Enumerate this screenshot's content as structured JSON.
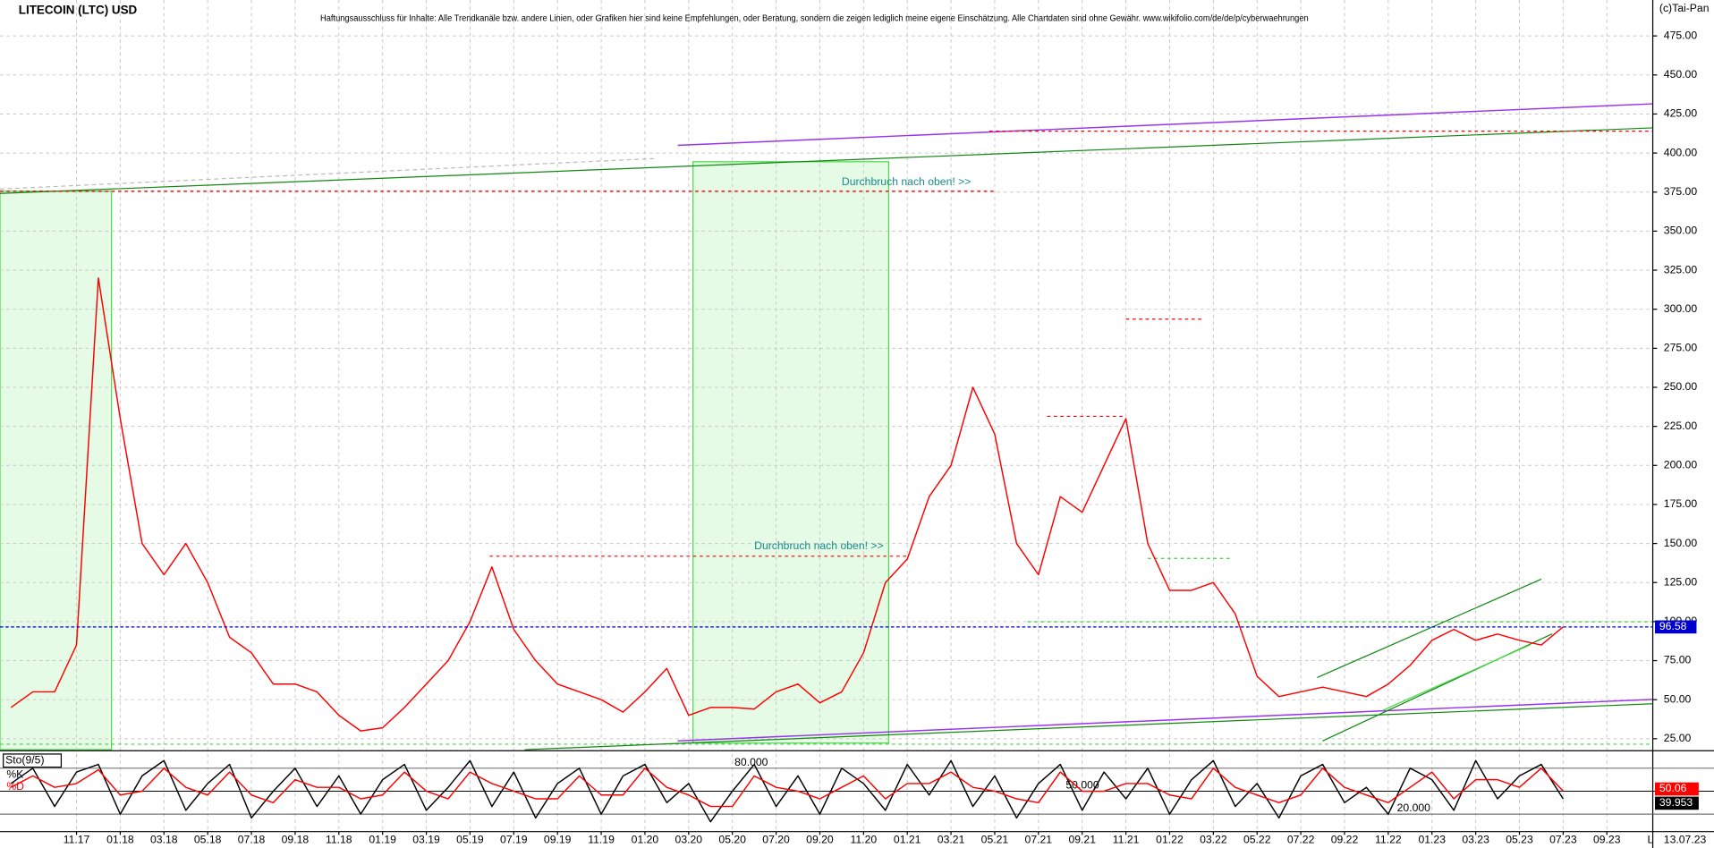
{
  "chart_data": [
    {
      "type": "line",
      "title": "LITECOIN (LTC) USD",
      "disclaimer": "Haftungsausschluss für Inhalte: Alle Trendkanäle bzw. andere Linien, oder Grafiken hier sind keine Empfehlungen, oder Beratung, sondern die zeigen lediglich meine eigene Einschätzung. Alle Chartdaten sind ohne Gewähr. www.wikifolio.com/de/de/p/cyberwaehrungen",
      "source": "(c)Tai-Pan",
      "date": "13.07.23",
      "axis_marker": "L",
      "annotations": [
        "Durchbruch nach oben! >>",
        "Durchbruch nach oben! >>"
      ],
      "categories": [
        null,
        null,
        null,
        "11.17",
        null,
        "01.18",
        null,
        "03.18",
        null,
        "05.18",
        null,
        "07.18",
        null,
        "09.18",
        null,
        "11.18",
        null,
        "01.19",
        null,
        "03.19",
        null,
        "05.19",
        null,
        "07.19",
        null,
        "09.19",
        null,
        "11.19",
        null,
        "01.20",
        null,
        "03.20",
        null,
        "05.20",
        null,
        "07.20",
        null,
        "09.20",
        null,
        "11.20",
        null,
        "01.21",
        null,
        "03.21",
        null,
        "05.21",
        null,
        "07.21",
        null,
        "09.21",
        null,
        "11.21",
        null,
        "01.22",
        null,
        "03.22",
        null,
        "05.22",
        null,
        "07.22",
        null,
        "09.22",
        null,
        "11.22",
        null,
        "01.23",
        null,
        "03.23",
        null,
        "05.23",
        null,
        "07.23",
        null,
        "09.23"
      ],
      "values": [
        45,
        55,
        55,
        85,
        320,
        230,
        150,
        130,
        150,
        125,
        90,
        80,
        60,
        60,
        55,
        40,
        30,
        32,
        45,
        60,
        75,
        100,
        135,
        95,
        75,
        60,
        55,
        50,
        42,
        55,
        70,
        40,
        45,
        45,
        44,
        55,
        60,
        48,
        55,
        80,
        125,
        140,
        180,
        200,
        250,
        220,
        150,
        130,
        180,
        170,
        200,
        230,
        150,
        120,
        120,
        125,
        105,
        65,
        52,
        55,
        58,
        55,
        52,
        60,
        72,
        88,
        95,
        88,
        92,
        88,
        85,
        96.58,
        null,
        null
      ],
      "color": "#ff0000",
      "ylim": [
        18,
        498
      ],
      "yticks": [
        {
          "value": 25,
          "label": "25.00"
        },
        {
          "value": 50,
          "label": "50.00"
        },
        {
          "value": 75,
          "label": "75.00"
        },
        {
          "value": 100,
          "label": "100.00"
        },
        {
          "value": 125,
          "label": "125.00"
        },
        {
          "value": 150,
          "label": "150.00"
        },
        {
          "value": 175,
          "label": "175.00"
        },
        {
          "value": 200,
          "label": "200.00"
        },
        {
          "value": 225,
          "label": "225.00"
        },
        {
          "value": 250,
          "label": "250.00"
        },
        {
          "value": 275,
          "label": "275.00"
        },
        {
          "value": 300,
          "label": "300.00"
        },
        {
          "value": 325,
          "label": "325.00"
        },
        {
          "value": 350,
          "label": "350.00"
        },
        {
          "value": 375,
          "label": "375.00"
        },
        {
          "value": 400,
          "label": "400.00"
        },
        {
          "value": 425,
          "label": "425.00"
        },
        {
          "value": 450,
          "label": "450.00"
        },
        {
          "value": 475,
          "label": "475.00"
        }
      ],
      "grid": true
    },
    {
      "type": "line",
      "title": "Sto(9/5)",
      "series": [
        {
          "name": "%K",
          "color": "#000000",
          "values": [
            60,
            80,
            30,
            75,
            85,
            20,
            70,
            90,
            25,
            60,
            85,
            15,
            50,
            80,
            30,
            70,
            20,
            65,
            85,
            25,
            55,
            90,
            30,
            75,
            15,
            60,
            80,
            20,
            70,
            85,
            35,
            60,
            10,
            50,
            85,
            30,
            70,
            20,
            80,
            60,
            25,
            85,
            45,
            90,
            30,
            70,
            15,
            60,
            85,
            25,
            75,
            40,
            80,
            20,
            65,
            90,
            30,
            60,
            15,
            70,
            85,
            35,
            55,
            20,
            80,
            65,
            25,
            90,
            40,
            70,
            85,
            39.953,
            null,
            null
          ]
        },
        {
          "name": "%D",
          "color": "#ff0000",
          "values": [
            55,
            70,
            55,
            60,
            78,
            45,
            50,
            80,
            55,
            45,
            75,
            45,
            35,
            65,
            55,
            55,
            40,
            45,
            75,
            50,
            40,
            75,
            60,
            50,
            40,
            40,
            70,
            45,
            45,
            80,
            55,
            45,
            30,
            30,
            70,
            55,
            50,
            40,
            55,
            70,
            40,
            60,
            60,
            75,
            55,
            50,
            40,
            35,
            75,
            50,
            50,
            60,
            60,
            45,
            40,
            80,
            55,
            45,
            35,
            45,
            80,
            55,
            45,
            35,
            55,
            75,
            40,
            65,
            65,
            55,
            80,
            50.06,
            null,
            null
          ]
        }
      ],
      "ylim": [
        0,
        100
      ],
      "yticks": [
        {
          "value": 80,
          "label": "80.000"
        },
        {
          "value": 50,
          "label": "50.000"
        },
        {
          "value": 20,
          "label": "20.000"
        }
      ]
    }
  ]
}
